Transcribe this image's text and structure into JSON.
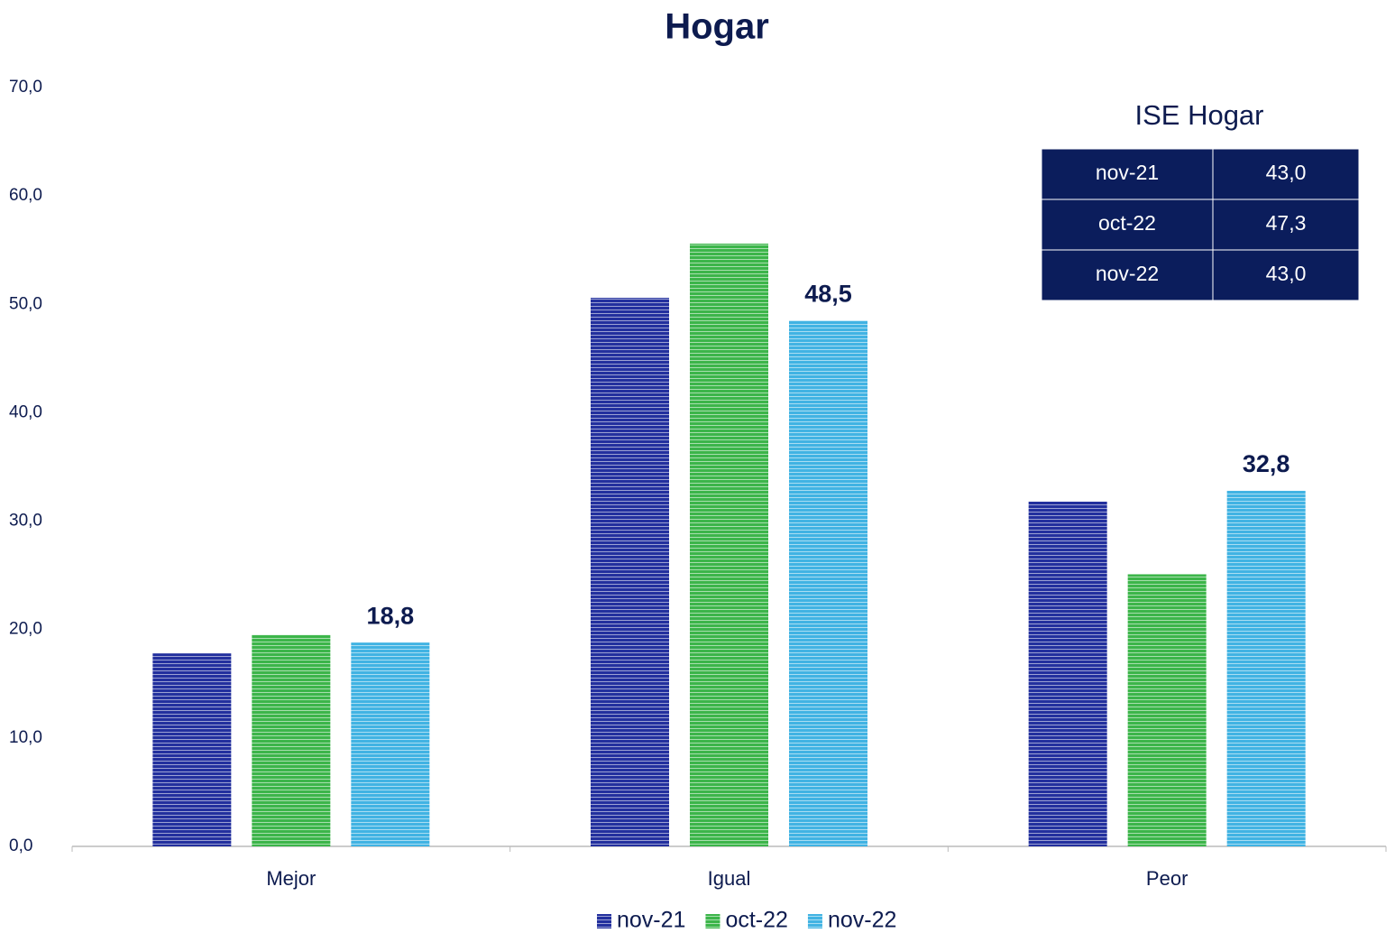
{
  "chart_data": {
    "type": "bar",
    "title": "Hogar",
    "categories": [
      "Mejor",
      "Igual",
      "Peor"
    ],
    "series": [
      {
        "name": "nov-21",
        "color": "#23309e",
        "values": [
          17.8,
          50.6,
          31.8
        ]
      },
      {
        "name": "oct-22",
        "color": "#3cb54a",
        "values": [
          19.5,
          55.6,
          25.1
        ]
      },
      {
        "name": "nov-22",
        "color": "#41b3e3",
        "values": [
          18.8,
          48.5,
          32.8
        ],
        "value_labels": [
          "18,8",
          "48,5",
          "32,8"
        ]
      }
    ],
    "ylim": [
      0,
      70
    ],
    "yticks": [
      {
        "value": 0,
        "label": "0,0"
      },
      {
        "value": 10,
        "label": "10,0"
      },
      {
        "value": 20,
        "label": "20,0"
      },
      {
        "value": 30,
        "label": "30,0"
      },
      {
        "value": 40,
        "label": "40,0"
      },
      {
        "value": 50,
        "label": "50,0"
      },
      {
        "value": 60,
        "label": "60,0"
      },
      {
        "value": 70,
        "label": "70,0"
      }
    ],
    "grid": false,
    "legend": "bottom"
  },
  "table": {
    "title": "ISE Hogar",
    "rows": [
      [
        "nov-21",
        "43,0"
      ],
      [
        "oct-22",
        "47,3"
      ],
      [
        "nov-22",
        "43,0"
      ]
    ]
  }
}
